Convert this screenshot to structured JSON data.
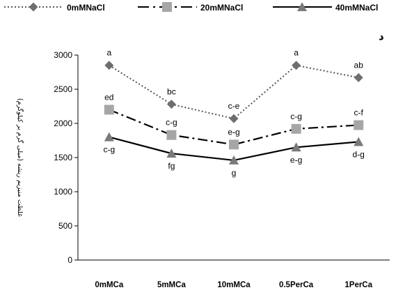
{
  "chart_data": {
    "type": "line",
    "corner_mark": "د",
    "ylabel": "(میلی گرم بر کیلوگرم) غلظت منیزیم ریشه",
    "categories": [
      "0mMCa",
      "5mMCa",
      "10mMCa",
      "0.5PerCa",
      "1PerCa"
    ],
    "ylim": [
      0,
      3000
    ],
    "yticks": [
      0,
      500,
      1000,
      1500,
      2000,
      2500,
      3000
    ],
    "grid": false,
    "legend_position": "top",
    "series": [
      {
        "name": "0mMNaCl",
        "style": "dotted",
        "marker": "diamond",
        "color": "#6e6e6e",
        "values": [
          2850,
          2280,
          2070,
          2850,
          2670
        ],
        "labels": [
          "a",
          "bc",
          "c-e",
          "a",
          "ab"
        ]
      },
      {
        "name": "20mMNaCl",
        "style": "dash-dot",
        "marker": "square",
        "color": "#a6a6a6",
        "values": [
          2200,
          1830,
          1690,
          1920,
          1975
        ],
        "labels": [
          "ed",
          "c-g",
          "e-g",
          "c-g",
          "c-f"
        ]
      },
      {
        "name": "40mMNaCl",
        "style": "solid",
        "marker": "triangle",
        "color": "#7a7a7a",
        "values": [
          1800,
          1560,
          1460,
          1650,
          1730
        ],
        "labels": [
          "c-g",
          "fg",
          "g",
          "e-g",
          "d-g"
        ]
      }
    ]
  }
}
